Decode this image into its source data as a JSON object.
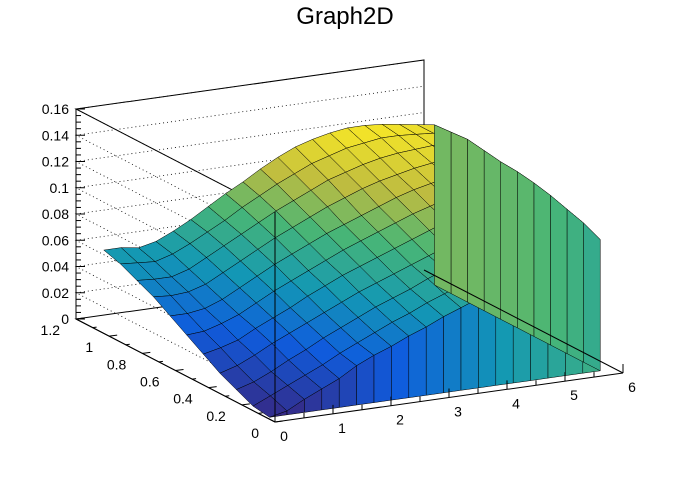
{
  "chart_data": {
    "type": "surface",
    "title": "Graph2D",
    "xlabel": "",
    "ylabel": "",
    "zlabel": "",
    "xlim": [
      0,
      6
    ],
    "ylim": [
      0,
      1.2
    ],
    "zlim": [
      0,
      0.16
    ],
    "x_ticks": [
      "0",
      "1",
      "2",
      "3",
      "4",
      "5",
      "6"
    ],
    "y_ticks": [
      "0",
      "0.2",
      "0.4",
      "0.6",
      "0.8",
      "1",
      "1.2"
    ],
    "z_ticks": [
      "0",
      "0.02",
      "0.04",
      "0.06",
      "0.08",
      "0.1",
      "0.12",
      "0.14",
      "0.16"
    ],
    "grid": "dotted back walls",
    "palette": "viridis-like (blue → teal → green → yellow)",
    "grid_x": [
      0.05,
      0.35,
      0.65,
      0.95,
      1.25,
      1.55,
      1.85,
      2.15,
      2.45,
      2.75,
      3.05,
      3.35,
      3.65,
      3.95,
      4.25,
      4.55,
      4.85,
      5.15,
      5.45,
      5.75
    ],
    "grid_y": [
      0.05,
      0.15,
      0.25,
      0.35,
      0.45,
      0.55,
      0.65,
      0.75,
      0.85,
      0.95,
      1.05
    ],
    "z_values": [
      [
        0.0,
        0.003,
        0.01,
        0.016,
        0.022,
        0.03,
        0.036,
        0.041,
        0.047,
        0.052,
        0.058,
        0.063,
        0.068,
        0.074,
        0.079,
        0.083,
        0.087,
        0.091,
        0.096,
        0.1
      ],
      [
        0.002,
        0.008,
        0.014,
        0.02,
        0.026,
        0.033,
        0.039,
        0.045,
        0.051,
        0.056,
        0.062,
        0.067,
        0.072,
        0.077,
        0.082,
        0.087,
        0.092,
        0.096,
        0.101,
        0.106
      ],
      [
        0.008,
        0.012,
        0.018,
        0.025,
        0.031,
        0.038,
        0.044,
        0.05,
        0.056,
        0.061,
        0.066,
        0.072,
        0.077,
        0.082,
        0.087,
        0.092,
        0.097,
        0.101,
        0.106,
        0.11
      ],
      [
        0.014,
        0.018,
        0.024,
        0.031,
        0.037,
        0.043,
        0.049,
        0.055,
        0.061,
        0.066,
        0.071,
        0.076,
        0.081,
        0.086,
        0.091,
        0.096,
        0.101,
        0.105,
        0.11,
        0.114
      ],
      [
        0.022,
        0.025,
        0.029,
        0.036,
        0.042,
        0.048,
        0.055,
        0.061,
        0.067,
        0.072,
        0.077,
        0.082,
        0.087,
        0.092,
        0.097,
        0.101,
        0.106,
        0.11,
        0.114,
        0.117
      ],
      [
        0.03,
        0.031,
        0.035,
        0.04,
        0.047,
        0.054,
        0.06,
        0.066,
        0.072,
        0.078,
        0.083,
        0.088,
        0.093,
        0.098,
        0.102,
        0.106,
        0.11,
        0.114,
        0.117,
        0.119
      ],
      [
        0.038,
        0.038,
        0.04,
        0.045,
        0.052,
        0.059,
        0.066,
        0.072,
        0.078,
        0.084,
        0.089,
        0.094,
        0.099,
        0.104,
        0.108,
        0.111,
        0.114,
        0.117,
        0.119,
        0.12
      ],
      [
        0.046,
        0.045,
        0.046,
        0.05,
        0.057,
        0.064,
        0.071,
        0.078,
        0.084,
        0.09,
        0.096,
        0.101,
        0.106,
        0.11,
        0.113,
        0.116,
        0.118,
        0.12,
        0.121,
        0.122
      ],
      [
        0.052,
        0.051,
        0.051,
        0.055,
        0.062,
        0.069,
        0.076,
        0.083,
        0.09,
        0.096,
        0.102,
        0.108,
        0.112,
        0.116,
        0.119,
        0.121,
        0.122,
        0.123,
        0.123,
        0.124
      ],
      [
        0.058,
        0.057,
        0.056,
        0.06,
        0.066,
        0.073,
        0.08,
        0.088,
        0.095,
        0.102,
        0.108,
        0.114,
        0.118,
        0.122,
        0.124,
        0.126,
        0.126,
        0.125,
        0.124,
        0.123
      ],
      [
        0.062,
        0.062,
        0.06,
        0.063,
        0.069,
        0.076,
        0.084,
        0.092,
        0.099,
        0.107,
        0.114,
        0.12,
        0.124,
        0.127,
        0.129,
        0.129,
        0.128,
        0.126,
        0.124,
        0.122
      ]
    ]
  }
}
